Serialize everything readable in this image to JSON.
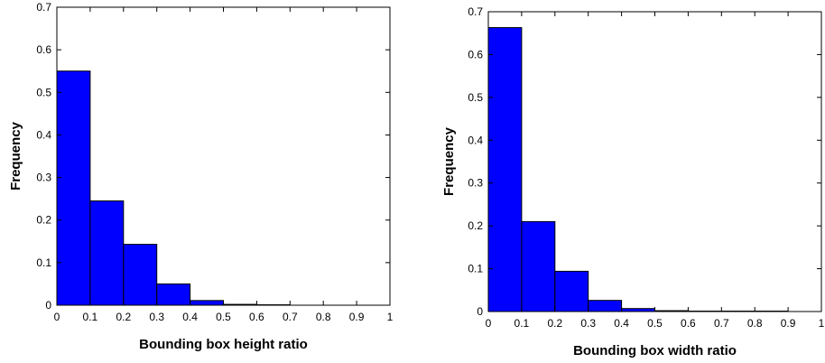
{
  "chart_data": [
    {
      "type": "bar",
      "xlabel": "Bounding box height ratio",
      "ylabel": "Frequency",
      "xlim": [
        0,
        1
      ],
      "ylim": [
        0,
        0.7
      ],
      "xticks": [
        "0",
        "0.1",
        "0.2",
        "0.3",
        "0.4",
        "0.5",
        "0.6",
        "0.7",
        "0.8",
        "0.9",
        "1"
      ],
      "yticks": [
        "0",
        "0.1",
        "0.2",
        "0.3",
        "0.4",
        "0.5",
        "0.6",
        "0.7"
      ],
      "bins": [
        {
          "start": 0.0,
          "end": 0.1,
          "value": 0.55
        },
        {
          "start": 0.1,
          "end": 0.2,
          "value": 0.245
        },
        {
          "start": 0.2,
          "end": 0.3,
          "value": 0.143
        },
        {
          "start": 0.3,
          "end": 0.4,
          "value": 0.05
        },
        {
          "start": 0.4,
          "end": 0.5,
          "value": 0.011
        },
        {
          "start": 0.5,
          "end": 0.6,
          "value": 0.002
        },
        {
          "start": 0.6,
          "end": 0.7,
          "value": 0.001
        }
      ],
      "bar_color": "#0000ff",
      "grid": false
    },
    {
      "type": "bar",
      "xlabel": "Bounding box width ratio",
      "ylabel": "Frequency",
      "xlim": [
        0,
        1
      ],
      "ylim": [
        0,
        0.7
      ],
      "xticks": [
        "0",
        "0.1",
        "0.2",
        "0.3",
        "0.4",
        "0.5",
        "0.6",
        "0.7",
        "0.8",
        "0.9",
        "1"
      ],
      "yticks": [
        "0",
        "0.1",
        "0.2",
        "0.3",
        "0.4",
        "0.5",
        "0.6",
        "0.7"
      ],
      "bins": [
        {
          "start": 0.0,
          "end": 0.1,
          "value": 0.663
        },
        {
          "start": 0.1,
          "end": 0.2,
          "value": 0.21
        },
        {
          "start": 0.2,
          "end": 0.3,
          "value": 0.094
        },
        {
          "start": 0.3,
          "end": 0.4,
          "value": 0.026
        },
        {
          "start": 0.4,
          "end": 0.5,
          "value": 0.007
        },
        {
          "start": 0.5,
          "end": 0.6,
          "value": 0.002
        },
        {
          "start": 0.6,
          "end": 0.7,
          "value": 0.001
        },
        {
          "start": 0.7,
          "end": 0.8,
          "value": 0.001
        },
        {
          "start": 0.8,
          "end": 0.9,
          "value": 0.001
        }
      ],
      "bar_color": "#0000ff",
      "grid": false
    }
  ]
}
